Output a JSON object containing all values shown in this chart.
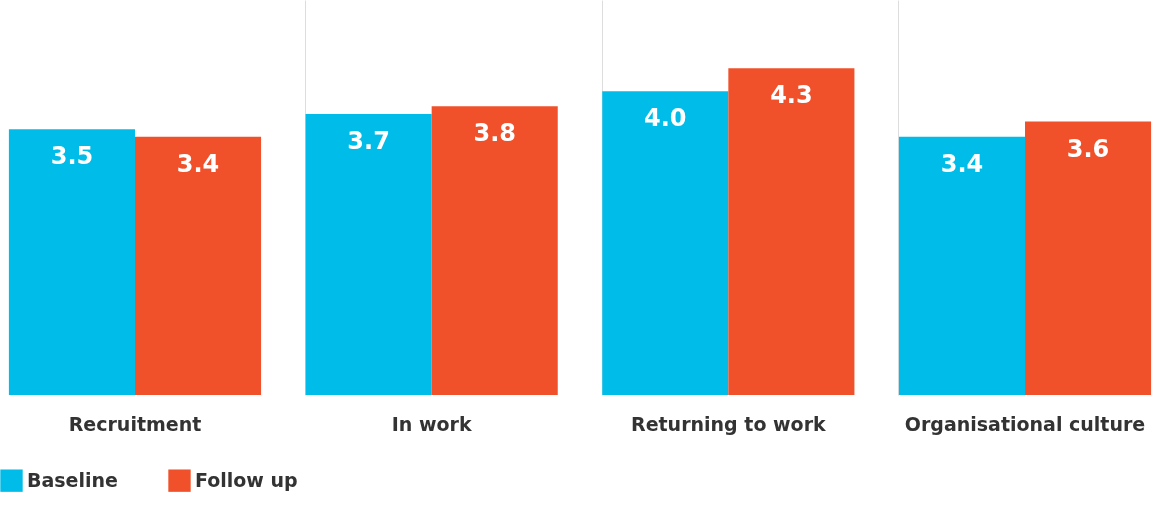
{
  "chart_data": {
    "type": "bar",
    "categories": [
      "Recruitment",
      "In work",
      "Returning to work",
      "Organisational culture"
    ],
    "series": [
      {
        "name": "Baseline",
        "color": "#00bce8",
        "values": [
          3.5,
          3.7,
          4.0,
          3.4
        ],
        "value_labels": [
          "3.5",
          "3.7",
          "4.0",
          "3.4"
        ]
      },
      {
        "name": "Follow up",
        "color": "#f0512a",
        "values": [
          3.4,
          3.8,
          4.3,
          3.6
        ],
        "value_labels": [
          "3.4",
          "3.8",
          "4.3",
          "3.6"
        ]
      }
    ],
    "ylim": [
      0,
      5.2
    ],
    "grid": "x",
    "legend": "bottom"
  }
}
